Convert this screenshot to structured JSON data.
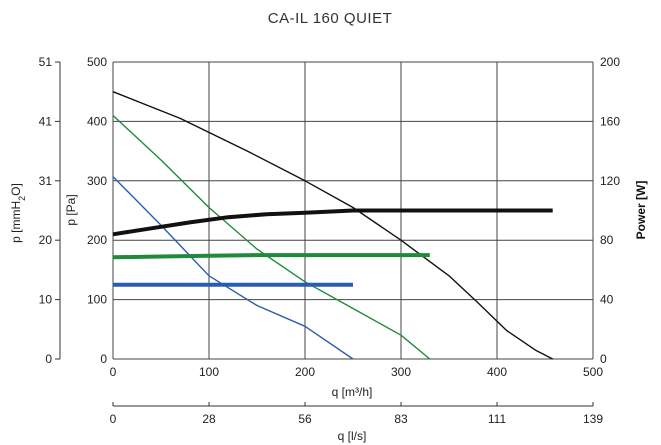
{
  "chart_data": {
    "type": "line",
    "title": "CA-IL 160 QUIET",
    "grid": true,
    "primary_y": {
      "label": "p [Pa]",
      "ticks": [
        "0",
        "100",
        "200",
        "300",
        "400",
        "500"
      ],
      "tick_values": [
        0,
        100,
        200,
        300,
        400,
        500
      ],
      "ylim": [
        0,
        500
      ]
    },
    "secondary_y_left": {
      "label_main": "p  [mmH",
      "label_sub": "2",
      "label_end": "O]",
      "ticks": [
        "0",
        "10",
        "20",
        "31",
        "41",
        "51"
      ],
      "tick_values": [
        0,
        100,
        200,
        300,
        400,
        500
      ]
    },
    "power_y": {
      "label": "Power [W]",
      "ticks": [
        "0",
        "40",
        "80",
        "120",
        "160",
        "200"
      ],
      "tick_values": [
        0,
        40,
        80,
        120,
        160,
        200
      ],
      "ylim": [
        0,
        200
      ]
    },
    "x_m3h": {
      "label": "q [m³/h]",
      "ticks": [
        "0",
        "100",
        "200",
        "300",
        "400",
        "500"
      ],
      "tick_values": [
        0,
        100,
        200,
        300,
        400,
        500
      ],
      "xlim": [
        0,
        500
      ]
    },
    "x_ls": {
      "label": "q [l/s]",
      "ticks": [
        "0",
        "28",
        "56",
        "83",
        "111",
        "139"
      ],
      "tick_values": [
        0,
        100,
        200,
        300,
        400,
        500
      ]
    },
    "series": [
      {
        "axis": "pressure",
        "color": "#111111",
        "width": 1.4,
        "x": [
          0,
          70,
          140,
          200,
          250,
          300,
          350,
          380,
          410,
          440,
          458
        ],
        "y": [
          450,
          405,
          350,
          300,
          255,
          200,
          140,
          95,
          48,
          15,
          0
        ]
      },
      {
        "axis": "pressure",
        "color": "#1f8a3a",
        "width": 1.4,
        "x": [
          0,
          50,
          100,
          150,
          200,
          250,
          300,
          330
        ],
        "y": [
          410,
          335,
          255,
          185,
          130,
          85,
          40,
          0
        ]
      },
      {
        "axis": "pressure",
        "color": "#2a5db0",
        "width": 1.4,
        "x": [
          0,
          50,
          100,
          150,
          200,
          250
        ],
        "y": [
          307,
          225,
          140,
          90,
          55,
          0
        ]
      },
      {
        "axis": "power",
        "color": "#111111",
        "width": 4,
        "x": [
          0,
          40,
          80,
          120,
          160,
          200,
          250,
          300,
          350,
          400,
          458
        ],
        "y": [
          84,
          88,
          92,
          95.5,
          97.5,
          98.5,
          100,
          100,
          100,
          100,
          100
        ]
      },
      {
        "axis": "power",
        "color": "#1f8a3a",
        "width": 4,
        "x": [
          0,
          50,
          100,
          150,
          200,
          250,
          300,
          330
        ],
        "y": [
          68.5,
          69,
          69.5,
          70,
          70,
          70,
          70,
          70
        ]
      },
      {
        "axis": "power",
        "color": "#2a5db0",
        "width": 4,
        "x": [
          0,
          50,
          100,
          150,
          200,
          250
        ],
        "y": [
          50,
          50,
          50,
          50,
          50,
          50
        ]
      }
    ]
  }
}
